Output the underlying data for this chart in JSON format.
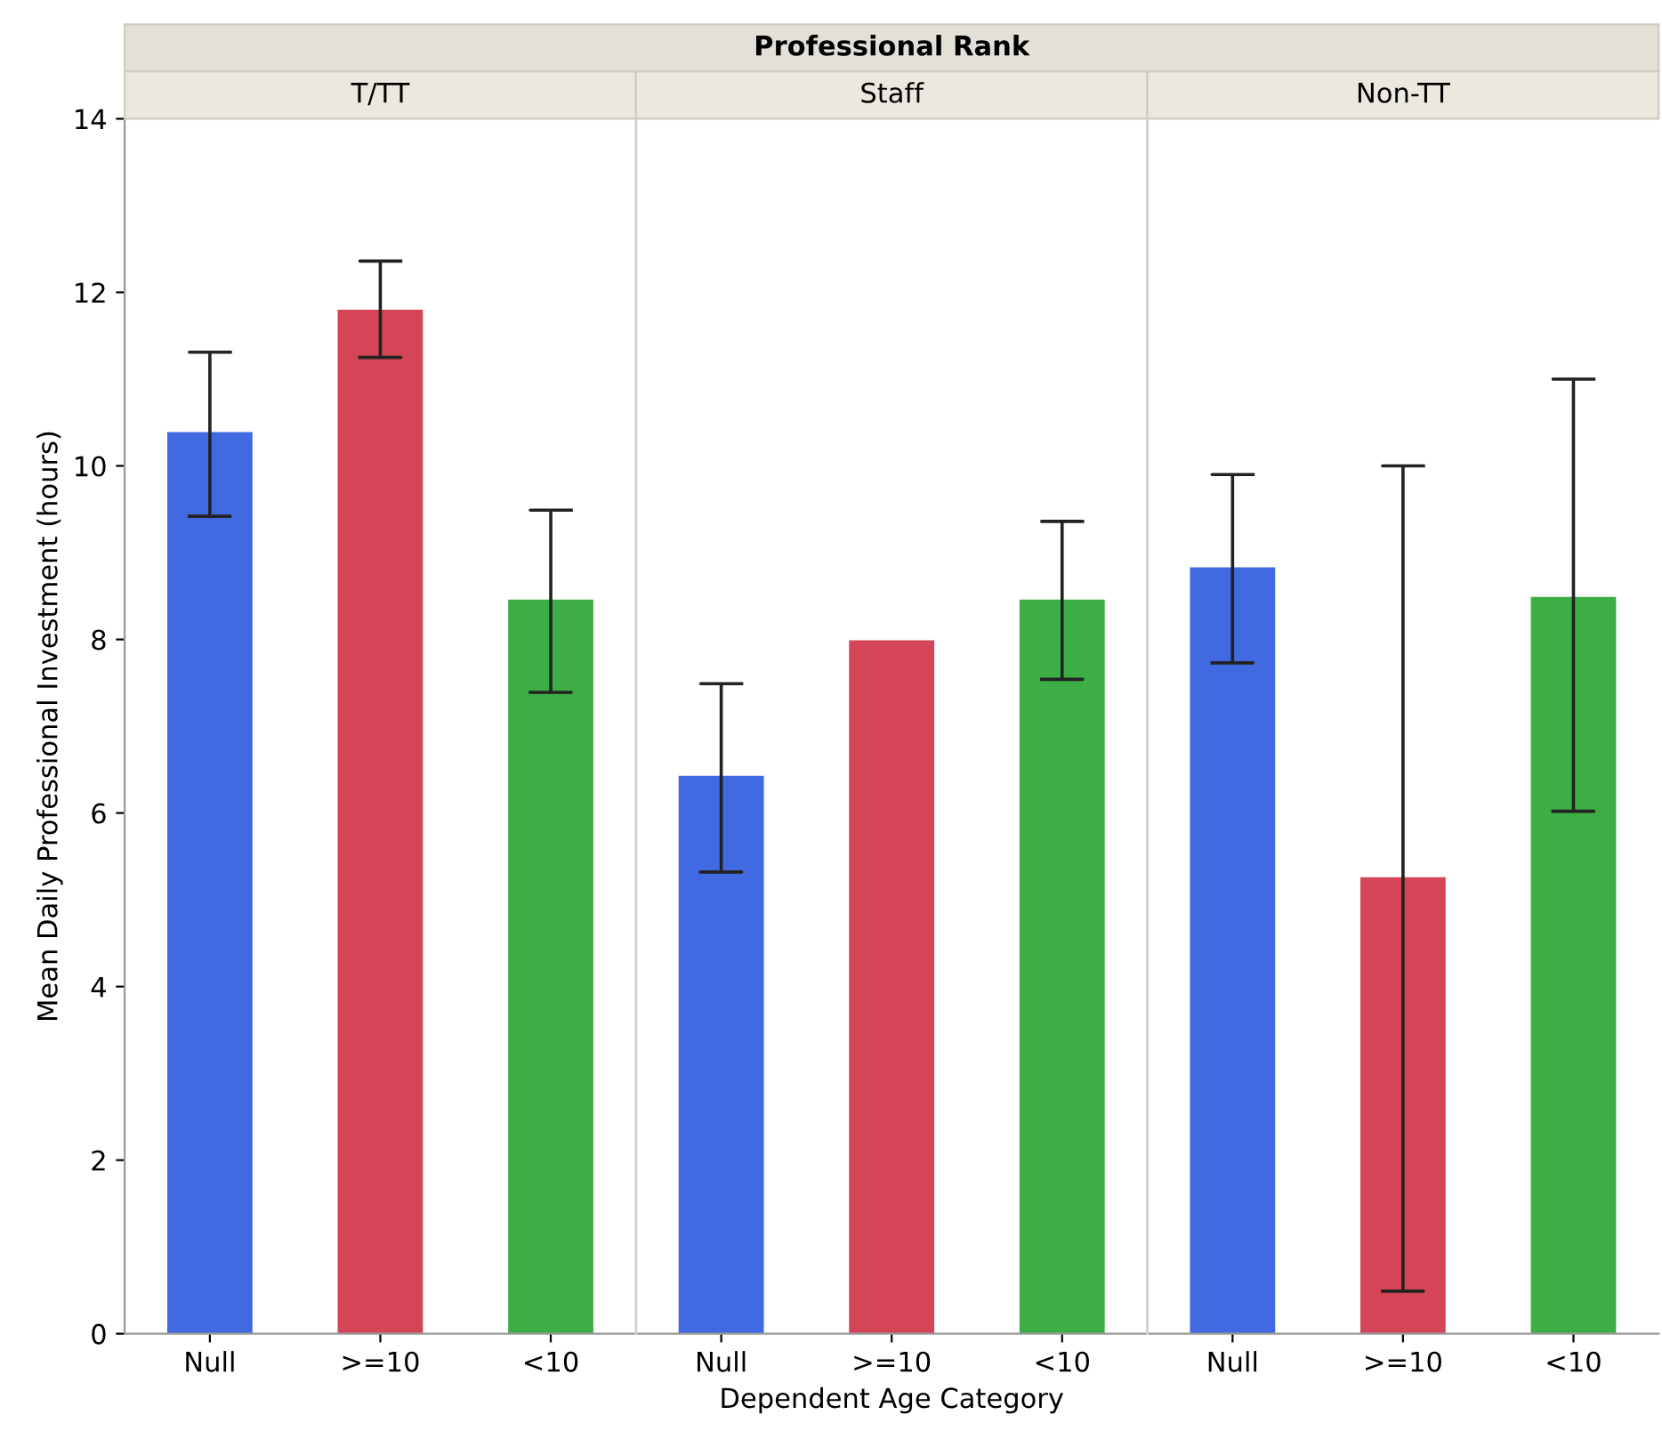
{
  "chart_data": {
    "type": "bar",
    "annotations": [
      "Professional Rank",
      "T/TT",
      "Staff",
      "Non-TT"
    ],
    "xlabel": "Dependent Age Category",
    "ylabel": "Mean Daily Professional Investment (hours)",
    "categories": [
      "Null",
      ">=10",
      "<10",
      "Null",
      ">=10",
      "<10",
      "Null",
      ">=10",
      "<10"
    ],
    "values": [
      10.39,
      11.8,
      8.46,
      6.43,
      7.99,
      8.46,
      8.83,
      5.26,
      8.49
    ],
    "errors": [
      [
        9.42,
        11.31
      ],
      [
        11.25,
        12.36
      ],
      [
        7.39,
        9.49
      ],
      [
        5.32,
        7.49
      ],
      null,
      [
        7.54,
        9.36
      ],
      [
        7.73,
        9.9
      ],
      [
        0.49,
        10.0
      ],
      [
        6.02,
        11.0
      ]
    ],
    "colors": [
      "#4169e1",
      "#d44557",
      "#3cae45",
      "#4169e1",
      "#d44557",
      "#3cae45",
      "#4169e1",
      "#d44557",
      "#3cae45"
    ],
    "ylim": [
      0,
      14
    ],
    "yticks": [
      0,
      2,
      4,
      6,
      8,
      10,
      12,
      14
    ]
  }
}
